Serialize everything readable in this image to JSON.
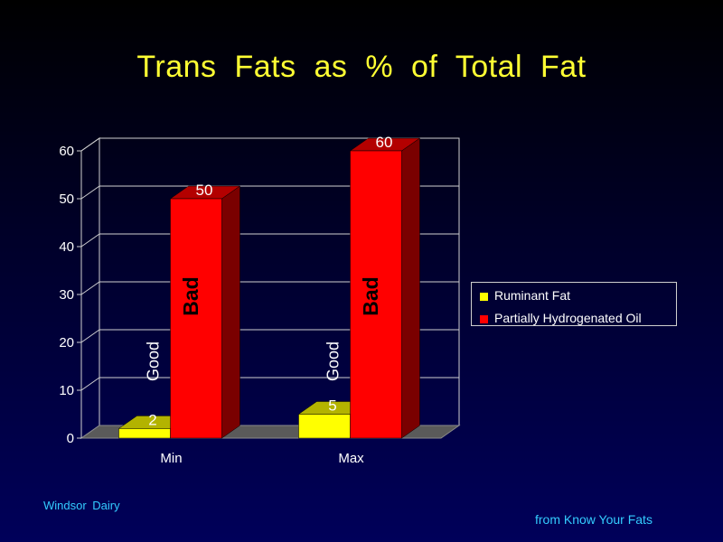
{
  "title": "Trans  Fats  as  %  of  Total  Fat",
  "footer": {
    "left": "Windsor  Dairy",
    "right": "from Know Your Fats"
  },
  "colors": {
    "title": "#ffff33",
    "footer": "#33ccff",
    "ruminant": "#ffff00",
    "phos": "#ff0000"
  },
  "chart_data": {
    "type": "bar",
    "title": "Trans  Fats  as  %  of  Total  Fat",
    "categories": [
      "Min",
      "Max"
    ],
    "series": [
      {
        "name": "Ruminant Fat",
        "values": [
          2,
          5
        ],
        "color": "#ffff00",
        "annotation": "Good"
      },
      {
        "name": "Partially Hydrogenated Oil",
        "values": [
          50,
          60
        ],
        "color": "#ff0000",
        "annotation": "Bad"
      }
    ],
    "ylim": [
      0,
      60
    ],
    "yticks": [
      0,
      10,
      20,
      30,
      40,
      50,
      60
    ],
    "grid": true,
    "legend": "right",
    "data_labels": true,
    "style": "3d"
  }
}
